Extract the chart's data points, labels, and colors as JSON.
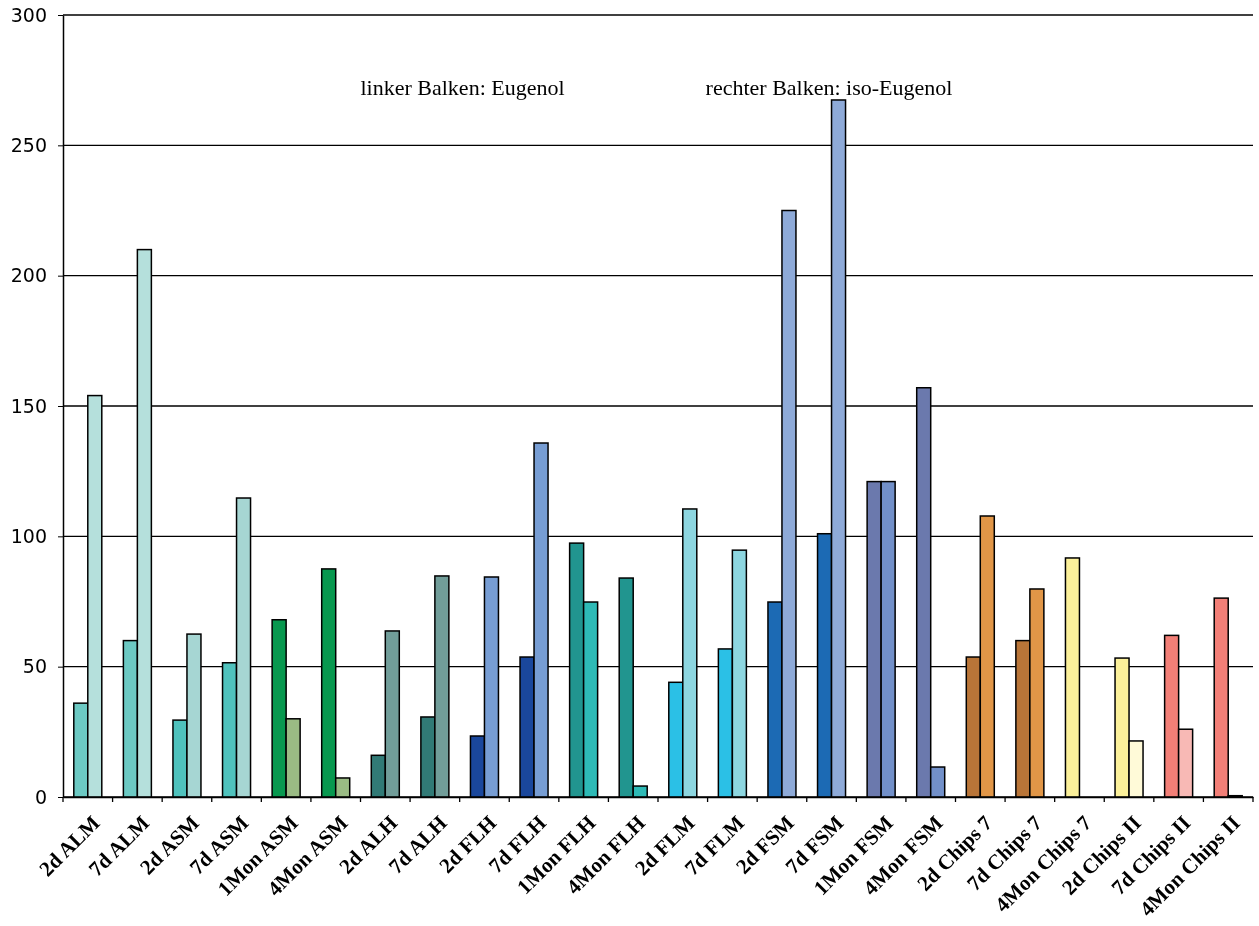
{
  "chart_data": {
    "type": "bar",
    "grid": "y",
    "categories": [
      "2d ALM",
      "7d ALM",
      "2d ASM",
      "7d ASM",
      "1Mon ASM",
      "4Mon ASM",
      "2d ALH",
      "7d ALH",
      "2d FLH",
      "7d FLH",
      "1Mon FLH",
      "4Mon FLH",
      "2d FLM",
      "7d FLM",
      "2d FSM",
      "7d FSM",
      "1Mon FSM",
      "4Mon FSM",
      "2d Chips 7",
      "7d Chips 7",
      "4Mon Chips 7",
      "2d Chips II",
      "7d Chips II",
      "4Mon Chips II"
    ],
    "ylim": [
      0,
      300
    ],
    "yticks": [
      0,
      50,
      100,
      150,
      200,
      250,
      300
    ],
    "annotations": [
      "linker Balken: Eugenol",
      "rechter Balken: iso-Eugenol"
    ],
    "series": [
      {
        "values": [
          36,
          60,
          29.5,
          51.5,
          68,
          87.5,
          16,
          30.7,
          23.4,
          53.7,
          97.4,
          84,
          44,
          56.8,
          74.8,
          101,
          121,
          157,
          53.7,
          60,
          91.7,
          53.3,
          62,
          76.3
        ],
        "colors": [
          "#6cc9c3",
          "#6cc9c3",
          "#4fc2bd",
          "#4fc2bd",
          "#08984f",
          "#08984f",
          "#317a76",
          "#317a76",
          "#1a479c",
          "#1a479c",
          "#21958f",
          "#21958f",
          "#2bc0e6",
          "#2bc0e6",
          "#1c6ab4",
          "#1c6ab4",
          "#6b79ad",
          "#6b79ad",
          "#b97538",
          "#b97538",
          "#fbf09a",
          "#fbf09a",
          "#f27f77",
          "#f27f77"
        ]
      },
      {
        "values": [
          154,
          210,
          62.5,
          114.7,
          30,
          7.3,
          63.7,
          84.8,
          84.4,
          135.8,
          74.8,
          4.2,
          110.5,
          94.7,
          225,
          267.4,
          121,
          11.5,
          107.8,
          79.8,
          0,
          21.5,
          26,
          0.5
        ],
        "colors": [
          "#b5e0dc",
          "#b5e0dc",
          "#a6d6d3",
          "#a6d6d3",
          "#9abb84",
          "#9abb84",
          "#719d99",
          "#719d99",
          "#779dd3",
          "#779dd3",
          "#2ebab6",
          "#2ebab6",
          "#8dd6e0",
          "#8dd6e0",
          "#8eaad8",
          "#8eaad8",
          "#7290c9",
          "#7290c9",
          "#e19647",
          "#e19647",
          "#fbf09a",
          "#fffad8",
          "#f8b9b5",
          "#f8b9b5"
        ]
      }
    ]
  }
}
